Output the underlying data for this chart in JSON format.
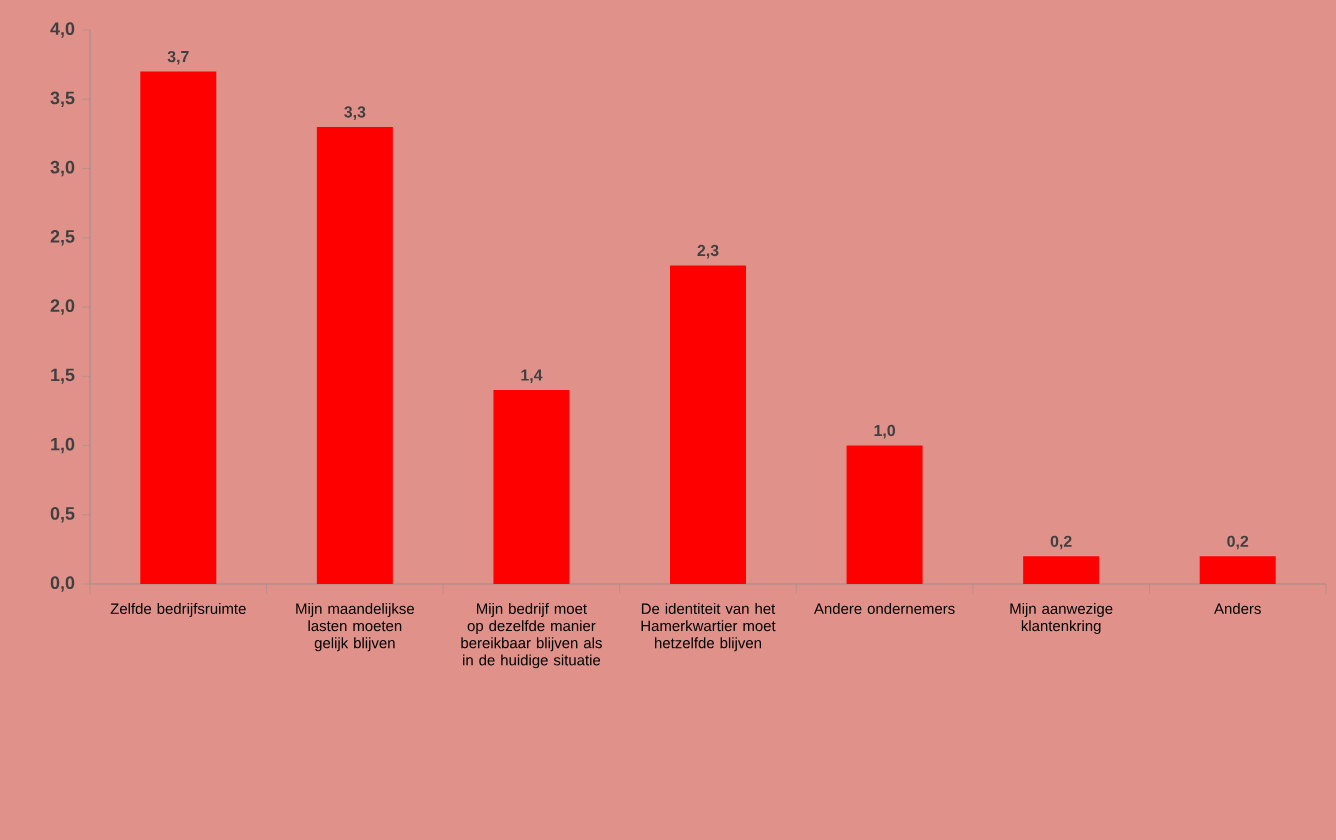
{
  "chart_data": {
    "type": "bar",
    "categories": [
      "Zelfde bedrijfsruimte",
      "Mijn maandelijkse lasten moeten gelijk blijven",
      "Mijn bedrijf moet op dezelfde manier bereikbaar blijven als in de huidige situatie",
      "De identiteit van het Hamerkwartier moet hetzelfde blijven",
      "Andere ondernemers",
      "Mijn aanwezige klantenkring",
      "Anders"
    ],
    "values": [
      3.7,
      3.3,
      1.4,
      2.3,
      1.0,
      0.2,
      0.2
    ],
    "value_labels": [
      "3,7",
      "3,3",
      "1,4",
      "2,3",
      "1,0",
      "0,2",
      "0,2"
    ],
    "color": "#ff0000",
    "ylim": [
      0,
      4
    ],
    "yticks": [
      {
        "value": 0,
        "label": "0,0"
      },
      {
        "value": 0.5,
        "label": "0,5"
      },
      {
        "value": 1,
        "label": "1,0"
      },
      {
        "value": 1.5,
        "label": "1,5"
      },
      {
        "value": 2,
        "label": "2,0"
      },
      {
        "value": 2.5,
        "label": "2,5"
      },
      {
        "value": 3,
        "label": "3,0"
      },
      {
        "value": 3.5,
        "label": "3,5"
      },
      {
        "value": 4,
        "label": "4,0"
      }
    ],
    "grid": false
  }
}
